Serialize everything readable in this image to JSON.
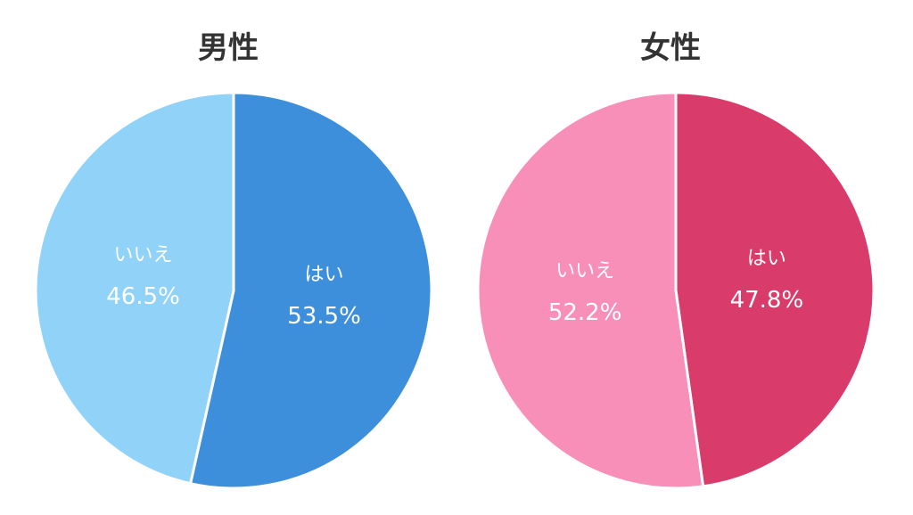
{
  "chart_data": [
    {
      "type": "pie",
      "title": "男性",
      "slices": [
        {
          "label": "はい",
          "value": 53.5,
          "display": "53.5%",
          "color": "#3d8fdb"
        },
        {
          "label": "いいえ",
          "value": 46.5,
          "display": "46.5%",
          "color": "#91d2f8"
        }
      ]
    },
    {
      "type": "pie",
      "title": "女性",
      "slices": [
        {
          "label": "はい",
          "value": 47.8,
          "display": "47.8%",
          "color": "#d93c6b"
        },
        {
          "label": "いいえ",
          "value": 52.2,
          "display": "52.2%",
          "color": "#f88fb8"
        }
      ]
    }
  ]
}
